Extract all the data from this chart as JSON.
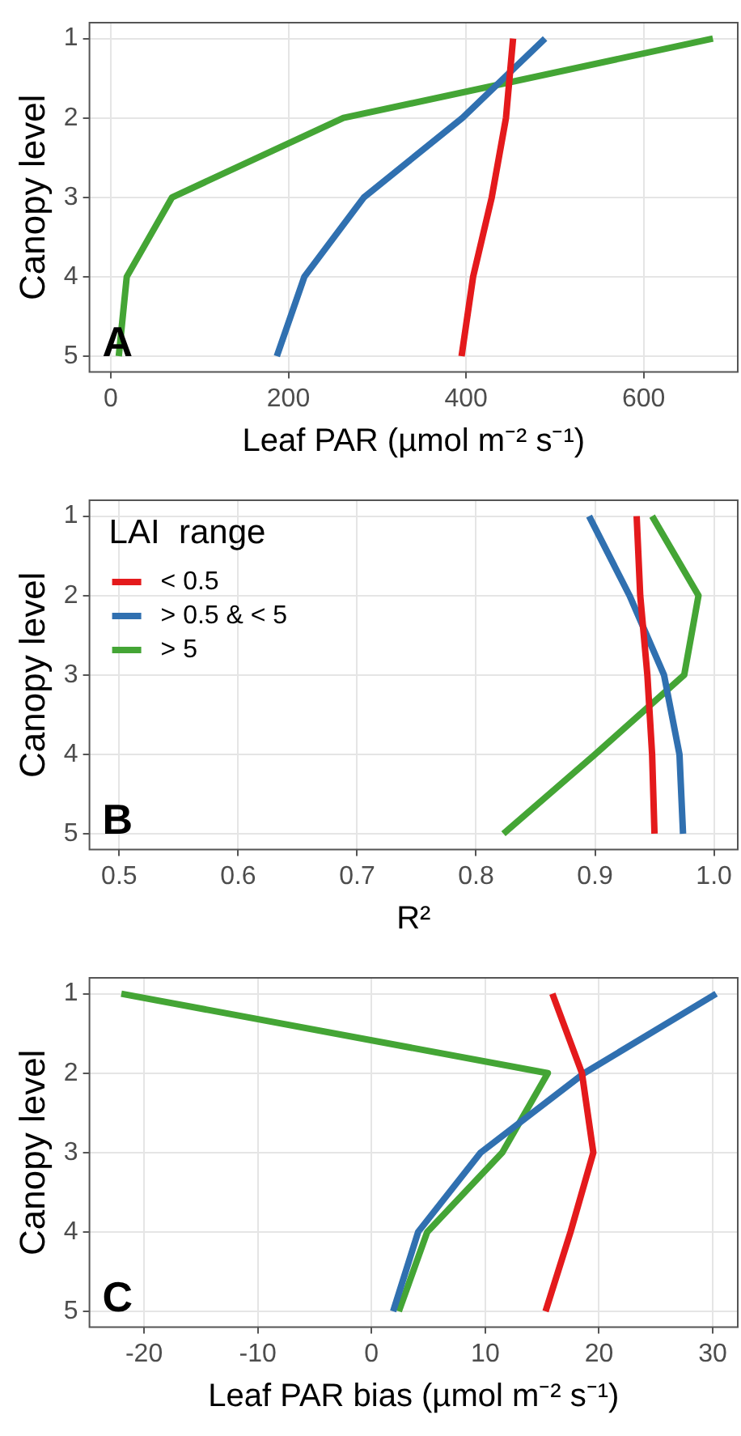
{
  "chart_data": [
    {
      "type": "line",
      "xlabel": "Leaf PAR (µmol m⁻² s⁻¹)",
      "ylabel": "Canopy level",
      "xlim": [
        -24,
        706
      ],
      "xticks": [
        0,
        200,
        400,
        600
      ],
      "ylim": [
        5.2,
        0.8
      ],
      "yticks": [
        1,
        2,
        3,
        4,
        5
      ],
      "grid": true,
      "legend": false,
      "marker": "none",
      "line_style": "solid",
      "annotations": [
        "A"
      ],
      "series": [
        {
          "color": "#e41a1c",
          "x": [
            453,
            445,
            429,
            408,
            395
          ],
          "values": [
            1,
            2,
            3,
            4,
            5
          ]
        },
        {
          "color": "#3070b0",
          "x": [
            489,
            396,
            285,
            218,
            187
          ],
          "values": [
            1,
            2,
            3,
            4,
            5
          ]
        },
        {
          "color": "#44a535",
          "x": [
            678,
            262,
            69,
            18,
            9
          ],
          "values": [
            1,
            2,
            3,
            4,
            5
          ]
        }
      ]
    },
    {
      "type": "line",
      "xlabel": "R²",
      "ylabel": "Canopy level",
      "xlim": [
        0.475,
        1.02
      ],
      "xticks": [
        {
          "value": 0.5,
          "label": "0.5"
        },
        {
          "value": 0.6,
          "label": "0.6"
        },
        {
          "value": 0.7,
          "label": "0.7"
        },
        {
          "value": 0.8,
          "label": "0.8"
        },
        {
          "value": 0.9,
          "label": "0.9"
        },
        {
          "value": 1,
          "label": "1.0"
        }
      ],
      "ylim": [
        5.2,
        0.8
      ],
      "yticks": [
        1,
        2,
        3,
        4,
        5
      ],
      "grid": true,
      "legend": "top left",
      "legend_title": "LAI  range",
      "marker": "none",
      "line_style": "solid",
      "annotations": [
        "B"
      ],
      "series": [
        {
          "name": "< 0.5",
          "color": "#e41a1c",
          "x": [
            0.935,
            0.938,
            0.944,
            0.948,
            0.95
          ],
          "values": [
            1,
            2,
            3,
            4,
            5
          ]
        },
        {
          "name": "> 0.5 & < 5",
          "color": "#3070b0",
          "x": [
            0.895,
            0.929,
            0.958,
            0.971,
            0.974
          ],
          "values": [
            1,
            2,
            3,
            4,
            5
          ]
        },
        {
          "name": "> 5",
          "color": "#44a535",
          "x": [
            0.948,
            0.987,
            0.975,
            0.9,
            0.823
          ],
          "values": [
            1,
            2,
            3,
            4,
            5
          ]
        }
      ]
    },
    {
      "type": "line",
      "xlabel": "Leaf PAR bias (µmol m⁻² s⁻¹)",
      "ylabel": "Canopy level",
      "xlim": [
        -24.8,
        32.2
      ],
      "xticks": [
        -20,
        -10,
        0,
        10,
        20,
        30
      ],
      "ylim": [
        5.2,
        0.8
      ],
      "yticks": [
        1,
        2,
        3,
        4,
        5
      ],
      "grid": true,
      "legend": false,
      "marker": "none",
      "line_style": "solid",
      "annotations": [
        "C"
      ],
      "series": [
        {
          "color": "#e41a1c",
          "x": [
            15.9,
            18.5,
            19.5,
            17.5,
            15.3
          ],
          "values": [
            1,
            2,
            3,
            4,
            5
          ]
        },
        {
          "color": "#3070b0",
          "x": [
            30.3,
            18.7,
            9.6,
            4.1,
            1.9
          ],
          "values": [
            1,
            2,
            3,
            4,
            5
          ]
        },
        {
          "color": "#44a535",
          "x": [
            -22,
            15.5,
            11.5,
            4.9,
            2.4
          ],
          "values": [
            1,
            2,
            3,
            4,
            5
          ]
        }
      ]
    }
  ]
}
